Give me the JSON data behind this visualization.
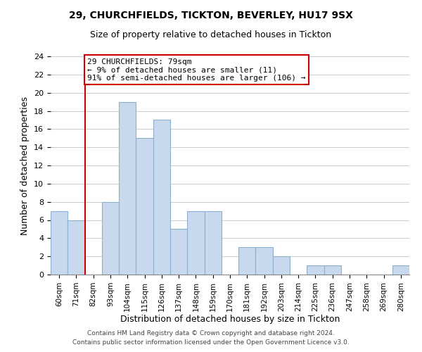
{
  "title1": "29, CHURCHFIELDS, TICKTON, BEVERLEY, HU17 9SX",
  "title2": "Size of property relative to detached houses in Tickton",
  "xlabel": "Distribution of detached houses by size in Tickton",
  "ylabel": "Number of detached properties",
  "bin_labels": [
    "60sqm",
    "71sqm",
    "82sqm",
    "93sqm",
    "104sqm",
    "115sqm",
    "126sqm",
    "137sqm",
    "148sqm",
    "159sqm",
    "170sqm",
    "181sqm",
    "192sqm",
    "203sqm",
    "214sqm",
    "225sqm",
    "236sqm",
    "247sqm",
    "258sqm",
    "269sqm",
    "280sqm"
  ],
  "bar_heights": [
    7,
    6,
    0,
    8,
    19,
    15,
    17,
    5,
    7,
    7,
    0,
    3,
    3,
    2,
    0,
    1,
    1,
    0,
    0,
    0,
    1
  ],
  "bar_color": "#c8d9ee",
  "bar_edge_color": "#8ab0d0",
  "subject_line_color": "#cc0000",
  "annotation_text": "29 CHURCHFIELDS: 79sqm\n← 9% of detached houses are smaller (11)\n91% of semi-detached houses are larger (106) →",
  "annotation_box_color": "#ffffff",
  "annotation_box_edge": "#cc0000",
  "ylim": [
    0,
    24
  ],
  "yticks": [
    0,
    2,
    4,
    6,
    8,
    10,
    12,
    14,
    16,
    18,
    20,
    22,
    24
  ],
  "footer1": "Contains HM Land Registry data © Crown copyright and database right 2024.",
  "footer2": "Contains public sector information licensed under the Open Government Licence v3.0.",
  "bg_color": "#ffffff",
  "grid_color": "#cccccc"
}
